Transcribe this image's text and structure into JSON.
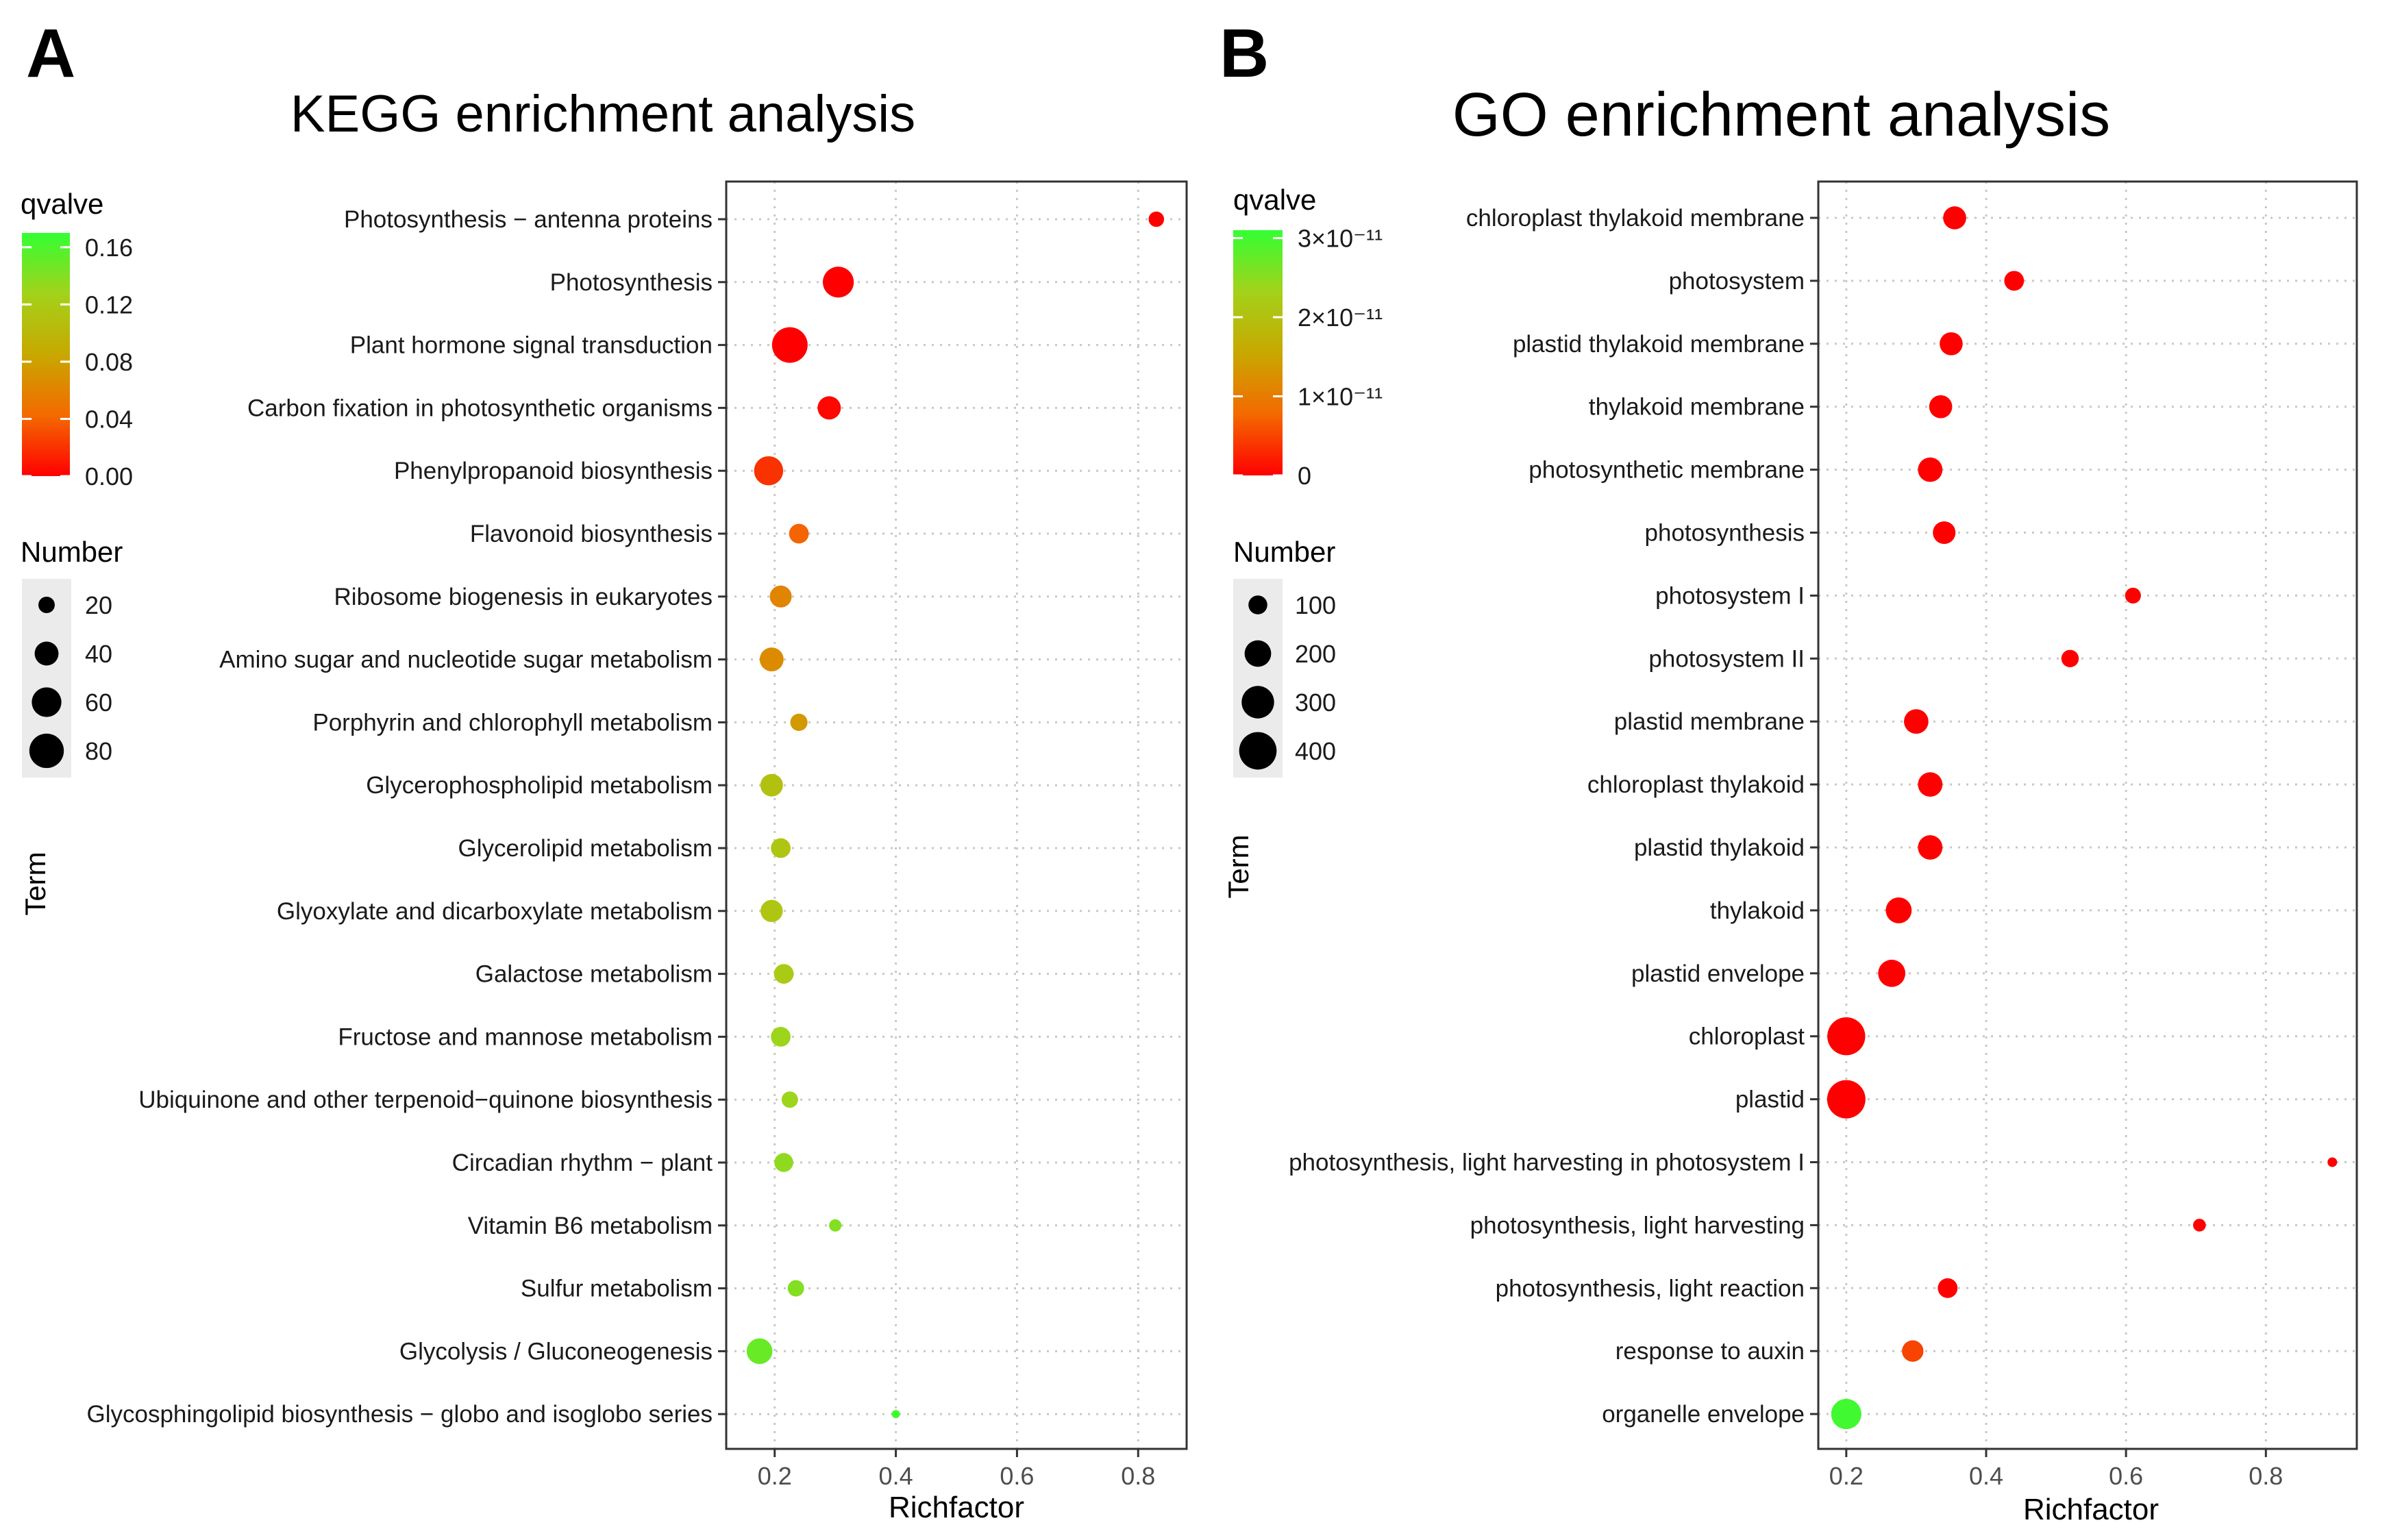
{
  "chart_data": [
    {
      "panel": "A",
      "type": "scatter",
      "title": "KEGG enrichment analysis",
      "xlabel": "Richfactor",
      "ylabel": "Term",
      "xlim": [
        0.12,
        0.88
      ],
      "xticks": [
        0.2,
        0.4,
        0.6,
        0.8
      ],
      "xtick_labels": [
        "0.2",
        "0.4",
        "0.6",
        "0.8"
      ],
      "grid": true,
      "color_legend": {
        "title": "qvalve",
        "ticks": [
          0.0,
          0.04,
          0.08,
          0.12,
          0.16
        ],
        "tick_labels": [
          "0.00",
          "0.04",
          "0.08",
          "0.12",
          "0.16"
        ],
        "min": 0.0,
        "max": 0.17,
        "colors": [
          "#ff0000",
          "#33ff33"
        ]
      },
      "size_legend": {
        "title": "Number",
        "values": [
          20,
          40,
          60,
          80
        ],
        "labels": [
          "20",
          "40",
          "60",
          "80"
        ]
      },
      "points": [
        {
          "term": "Photosynthesis − antenna proteins",
          "richfactor": 0.83,
          "number": 18,
          "qvalue": 0.0
        },
        {
          "term": "Photosynthesis",
          "richfactor": 0.305,
          "number": 65,
          "qvalue": 0.0
        },
        {
          "term": "Plant hormone signal transduction",
          "richfactor": 0.225,
          "number": 85,
          "qvalue": 0.0
        },
        {
          "term": "Carbon fixation in photosynthetic organisms",
          "richfactor": 0.29,
          "number": 38,
          "qvalue": 0.003
        },
        {
          "term": "Phenylpropanoid biosynthesis",
          "richfactor": 0.19,
          "number": 58,
          "qvalue": 0.02
        },
        {
          "term": "Flavonoid biosynthesis",
          "richfactor": 0.24,
          "number": 28,
          "qvalue": 0.04
        },
        {
          "term": "Ribosome biogenesis in eukaryotes",
          "richfactor": 0.21,
          "number": 34,
          "qvalue": 0.06
        },
        {
          "term": "Amino sugar and nucleotide sugar metabolism",
          "richfactor": 0.195,
          "number": 40,
          "qvalue": 0.065
        },
        {
          "term": "Porphyrin and chlorophyll metabolism",
          "richfactor": 0.24,
          "number": 22,
          "qvalue": 0.075
        },
        {
          "term": "Glycerophospholipid metabolism",
          "richfactor": 0.195,
          "number": 36,
          "qvalue": 0.11
        },
        {
          "term": "Glycerolipid metabolism",
          "richfactor": 0.21,
          "number": 28,
          "qvalue": 0.115
        },
        {
          "term": "Glyoxylate and dicarboxylate metabolism",
          "richfactor": 0.195,
          "number": 35,
          "qvalue": 0.115
        },
        {
          "term": "Galactose metabolism",
          "richfactor": 0.215,
          "number": 28,
          "qvalue": 0.12
        },
        {
          "term": "Fructose and mannose metabolism",
          "richfactor": 0.21,
          "number": 28,
          "qvalue": 0.13
        },
        {
          "term": "Ubiquinone and other terpenoid−quinone biosynthesis",
          "richfactor": 0.225,
          "number": 20,
          "qvalue": 0.13
        },
        {
          "term": "Circadian rhythm − plant",
          "richfactor": 0.215,
          "number": 26,
          "qvalue": 0.135
        },
        {
          "term": "Vitamin B6 metabolism",
          "richfactor": 0.3,
          "number": 12,
          "qvalue": 0.14
        },
        {
          "term": "Sulfur metabolism",
          "richfactor": 0.235,
          "number": 20,
          "qvalue": 0.14
        },
        {
          "term": "Glycolysis / Gluconeogenesis",
          "richfactor": 0.175,
          "number": 46,
          "qvalue": 0.15
        },
        {
          "term": "Glycosphingolipid biosynthesis − globo and isoglobo series",
          "richfactor": 0.4,
          "number": 6,
          "qvalue": 0.165
        }
      ]
    },
    {
      "panel": "B",
      "type": "scatter",
      "title": "GO enrichment analysis",
      "xlabel": "Richfactor",
      "ylabel": "Term",
      "xlim": [
        0.16,
        0.93
      ],
      "xticks": [
        0.2,
        0.4,
        0.6,
        0.8
      ],
      "xtick_labels": [
        "0.2",
        "0.4",
        "0.6",
        "0.8"
      ],
      "grid": true,
      "color_legend": {
        "title": "qvalve",
        "ticks": [
          0,
          1e-11,
          2e-11,
          3e-11
        ],
        "tick_labels": [
          "0",
          "1×10⁻¹¹",
          "2×10⁻¹¹",
          "3×10⁻¹¹"
        ],
        "min": 0,
        "max": 3.1e-11,
        "colors": [
          "#ff0000",
          "#33ff33"
        ]
      },
      "size_legend": {
        "title": "Number",
        "values": [
          100,
          200,
          300,
          400
        ],
        "labels": [
          "100",
          "200",
          "300",
          "400"
        ]
      },
      "points": [
        {
          "term": "chloroplast thylakoid membrane",
          "richfactor": 0.355,
          "number": 150,
          "qvalue": 0
        },
        {
          "term": "photosystem",
          "richfactor": 0.44,
          "number": 110,
          "qvalue": 0
        },
        {
          "term": "plastid thylakoid membrane",
          "richfactor": 0.35,
          "number": 150,
          "qvalue": 0
        },
        {
          "term": "thylakoid membrane",
          "richfactor": 0.335,
          "number": 150,
          "qvalue": 0
        },
        {
          "term": "photosynthetic membrane",
          "richfactor": 0.32,
          "number": 170,
          "qvalue": 0
        },
        {
          "term": "photosynthesis",
          "richfactor": 0.34,
          "number": 145,
          "qvalue": 0
        },
        {
          "term": "photosystem I",
          "richfactor": 0.61,
          "number": 70,
          "qvalue": 0
        },
        {
          "term": "photosystem II",
          "richfactor": 0.52,
          "number": 85,
          "qvalue": 0
        },
        {
          "term": "plastid membrane",
          "richfactor": 0.3,
          "number": 170,
          "qvalue": 0
        },
        {
          "term": "chloroplast thylakoid",
          "richfactor": 0.32,
          "number": 170,
          "qvalue": 0
        },
        {
          "term": "plastid thylakoid",
          "richfactor": 0.32,
          "number": 170,
          "qvalue": 0
        },
        {
          "term": "thylakoid",
          "richfactor": 0.275,
          "number": 190,
          "qvalue": 0
        },
        {
          "term": "plastid envelope",
          "richfactor": 0.265,
          "number": 210,
          "qvalue": 0
        },
        {
          "term": "chloroplast",
          "richfactor": 0.2,
          "number": 410,
          "qvalue": 0
        },
        {
          "term": "plastid",
          "richfactor": 0.2,
          "number": 420,
          "qvalue": 0
        },
        {
          "term": "photosynthesis, light harvesting in photosystem I",
          "richfactor": 0.895,
          "number": 25,
          "qvalue": 0
        },
        {
          "term": "photosynthesis, light harvesting",
          "richfactor": 0.705,
          "number": 45,
          "qvalue": 0
        },
        {
          "term": "photosynthesis, light reaction",
          "richfactor": 0.345,
          "number": 110,
          "qvalue": 0
        },
        {
          "term": "response to auxin",
          "richfactor": 0.295,
          "number": 130,
          "qvalue": 5e-12
        },
        {
          "term": "organelle envelope",
          "richfactor": 0.2,
          "number": 260,
          "qvalue": 3e-11
        }
      ]
    }
  ]
}
